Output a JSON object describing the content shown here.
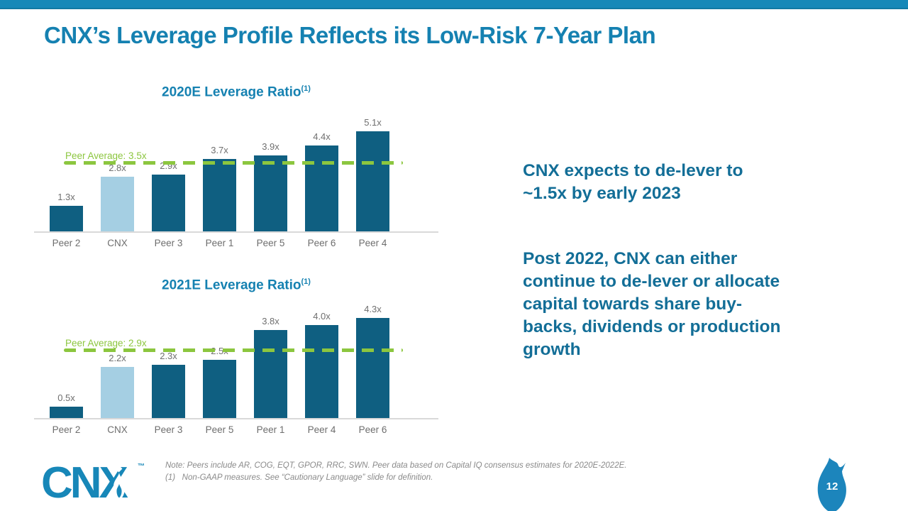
{
  "slide": {
    "title": "CNX’s Leverage Profile Reflects its Low-Risk 7-Year Plan",
    "page_number": "12"
  },
  "colors": {
    "accent_bar": "#1688B8",
    "heading_teal": "#1581B1",
    "insight_teal": "#136E97",
    "dark_bar": "#0F5F81",
    "cnx_highlight_bar": "#A5CFE3",
    "peer_average_green": "#8CC63F",
    "label_gray": "#6F6F6F",
    "note_gray": "#8A8A8A",
    "logo_blue": "#1787B8"
  },
  "insights": {
    "block1": "CNX expects to de-lever to\n~1.5x by early 2023",
    "block2": "Post 2022, CNX can either\ncontinue to de-lever or allocate\ncapital towards share buy-\nbacks, dividends or production\ngrowth"
  },
  "footer": {
    "logo_text": "CNX",
    "logo_tm": "™",
    "note_line1": "Note: Peers include AR, COG, EQT, GPOR, RRC, SWN. Peer data based on Capital IQ consensus estimates for 2020E-2022E.",
    "note_line2": "(1)   Non-GAAP measures. See “Cautionary Language” slide for definition."
  },
  "chart_data": [
    {
      "type": "bar",
      "title": "2020E Leverage Ratio",
      "title_superscript": "(1)",
      "categories": [
        "Peer 2",
        "CNX",
        "Peer 3",
        "Peer 1",
        "Peer 5",
        "Peer 6",
        "Peer 4"
      ],
      "values": [
        1.3,
        2.8,
        2.9,
        3.7,
        3.9,
        4.4,
        5.1
      ],
      "value_labels": [
        "1.3x",
        "2.8x",
        "2.9x",
        "3.7x",
        "3.9x",
        "4.4x",
        "5.1x"
      ],
      "highlight_category": "CNX",
      "peer_average": 3.5,
      "peer_average_label": "Peer Average: 3.5x",
      "xlabel": "",
      "ylabel": "",
      "ylim": [
        0,
        5.5
      ],
      "grid": false,
      "legend": "none"
    },
    {
      "type": "bar",
      "title": "2021E Leverage Ratio",
      "title_superscript": "(1)",
      "categories": [
        "Peer 2",
        "CNX",
        "Peer 3",
        "Peer 5",
        "Peer 1",
        "Peer 4",
        "Peer 6"
      ],
      "values": [
        0.5,
        2.2,
        2.3,
        2.5,
        3.8,
        4.0,
        4.3
      ],
      "value_labels": [
        "0.5x",
        "2.2x",
        "2.3x",
        "2.5x",
        "3.8x",
        "4.0x",
        "4.3x"
      ],
      "highlight_category": "CNX",
      "peer_average": 2.9,
      "peer_average_label": "Peer Average: 2.9x",
      "xlabel": "",
      "ylabel": "",
      "ylim": [
        0,
        4.7
      ],
      "grid": false,
      "legend": "none"
    }
  ]
}
